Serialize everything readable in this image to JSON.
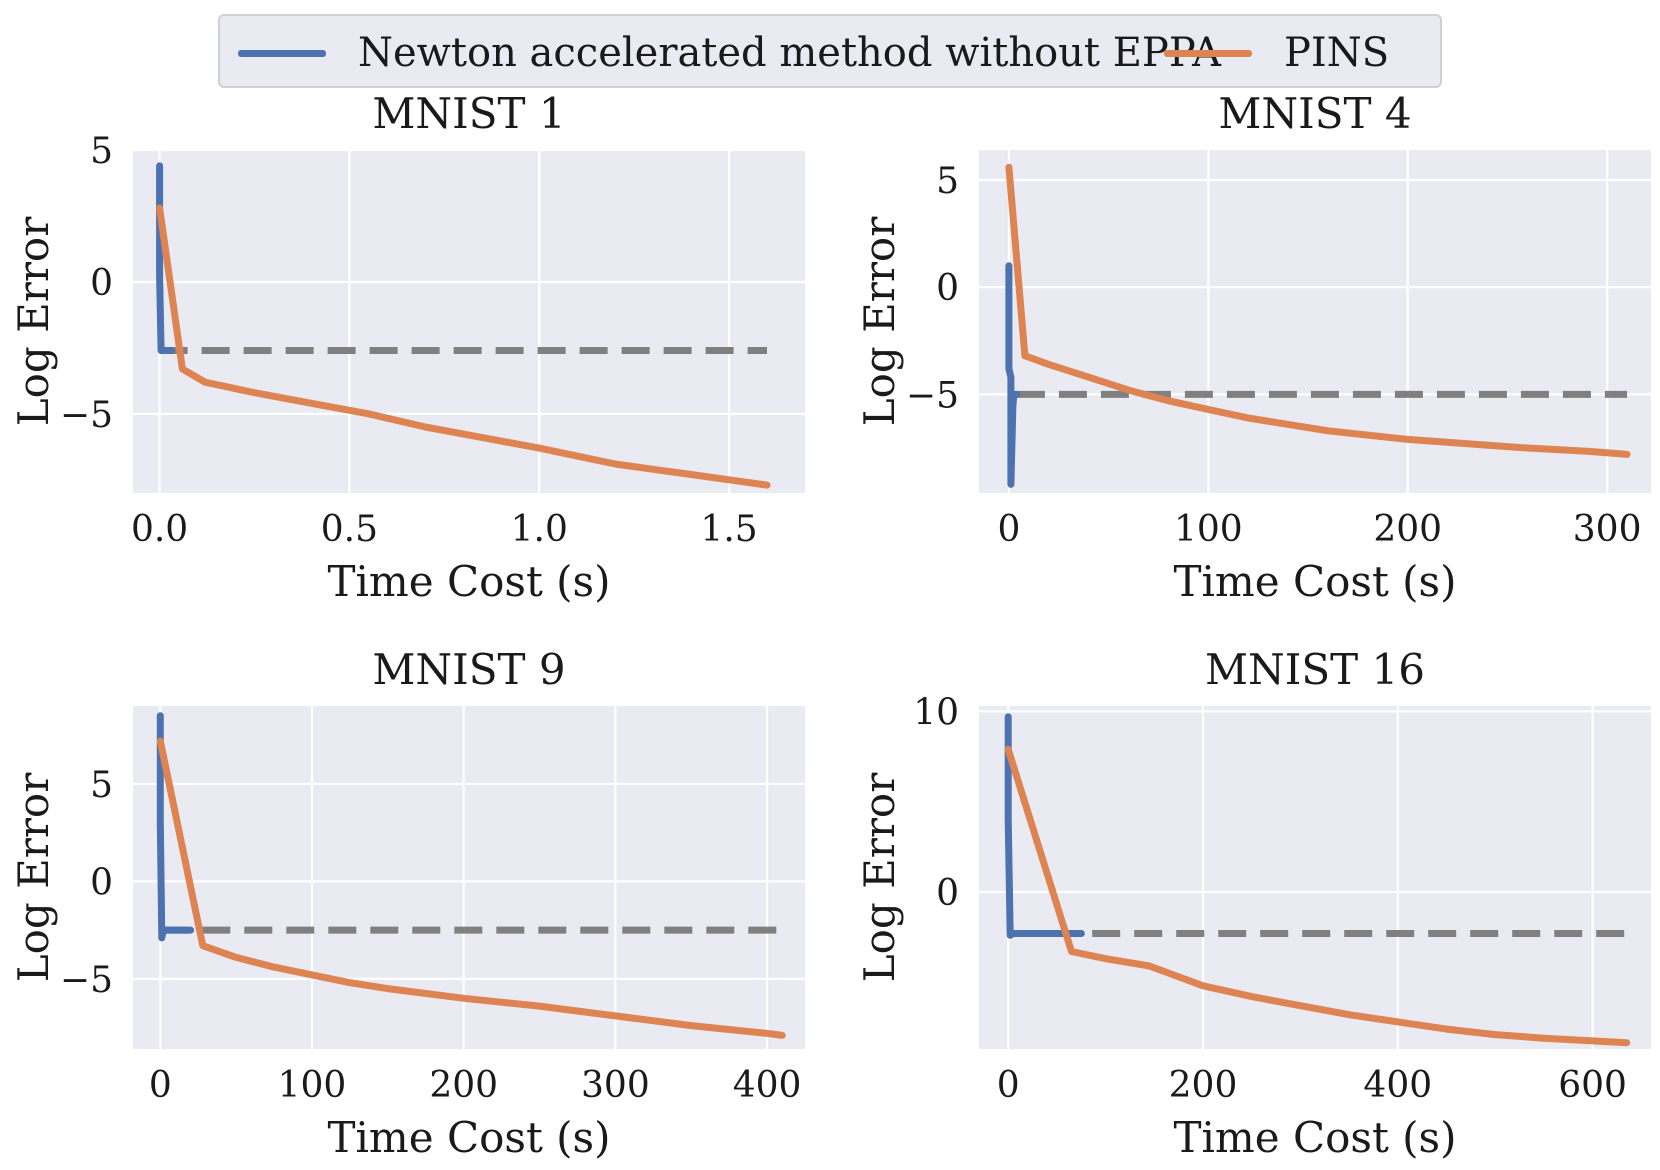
{
  "legend": {
    "series_a": "Newton accelerated method without EPPA",
    "series_b": "PINS"
  },
  "colors": {
    "newton": "#4c72b0",
    "pins": "#dd8452",
    "reference": "#808080",
    "plot_bg": "#eaeaf2",
    "grid": "#ffffff"
  },
  "chart_data": [
    {
      "type": "line",
      "title": "MNIST 1",
      "xlabel": "Time Cost (s)",
      "ylabel": "Log Error",
      "xlim": [
        -0.07,
        1.7
      ],
      "ylim": [
        -8.0,
        5.0
      ],
      "xticks": [
        0.0,
        0.5,
        1.0,
        1.5
      ],
      "xtick_labels": [
        "0.0",
        "0.5",
        "1.0",
        "1.5"
      ],
      "yticks": [
        -5,
        0,
        5
      ],
      "ytick_labels": [
        "−5",
        "0",
        "5"
      ],
      "grid": true,
      "legend": "top-center (shared)",
      "series": [
        {
          "name": "Newton accelerated method without EPPA",
          "x": [
            0.0,
            0.0,
            0.004,
            0.01,
            0.03
          ],
          "y": [
            4.4,
            0.2,
            -2.6,
            -2.6,
            -2.6
          ]
        },
        {
          "name": "PINS",
          "x": [
            0.0,
            0.06,
            0.12,
            0.25,
            0.4,
            0.55,
            0.7,
            0.85,
            1.0,
            1.1,
            1.2,
            1.3,
            1.4,
            1.5,
            1.6
          ],
          "y": [
            2.8,
            -3.3,
            -3.8,
            -4.2,
            -4.6,
            -5.0,
            -5.5,
            -5.9,
            -6.3,
            -6.6,
            -6.9,
            -7.1,
            -7.3,
            -7.5,
            -7.7
          ]
        },
        {
          "name": "",
          "dashed": true,
          "x": [
            0.0,
            1.6
          ],
          "y": [
            -2.6,
            -2.6
          ]
        }
      ]
    },
    {
      "type": "line",
      "title": "MNIST 4",
      "xlabel": "Time Cost (s)",
      "ylabel": "Log Error",
      "xlim": [
        -15,
        322
      ],
      "ylim": [
        -9.6,
        6.4
      ],
      "xticks": [
        0,
        100,
        200,
        300
      ],
      "xtick_labels": [
        "0",
        "100",
        "200",
        "300"
      ],
      "yticks": [
        -5,
        0,
        5
      ],
      "ytick_labels": [
        "−5",
        "0",
        "5"
      ],
      "grid": true,
      "legend": "top-center (shared)",
      "series": [
        {
          "name": "Newton accelerated method without EPPA",
          "x": [
            0.0,
            0.0,
            1.0,
            1.0,
            2.0,
            2.5,
            4.0
          ],
          "y": [
            1.0,
            -3.8,
            -4.2,
            -9.2,
            -5.5,
            -5.0,
            -5.0
          ]
        },
        {
          "name": "PINS",
          "x": [
            0,
            8,
            20,
            40,
            60,
            80,
            100,
            120,
            140,
            160,
            180,
            200,
            230,
            260,
            290,
            310
          ],
          "y": [
            5.6,
            -3.2,
            -3.6,
            -4.2,
            -4.8,
            -5.3,
            -5.7,
            -6.1,
            -6.4,
            -6.7,
            -6.9,
            -7.1,
            -7.3,
            -7.5,
            -7.65,
            -7.8
          ]
        },
        {
          "name": "",
          "dashed": true,
          "x": [
            4,
            310
          ],
          "y": [
            -5.0,
            -5.0
          ]
        }
      ]
    },
    {
      "type": "line",
      "title": "MNIST 9",
      "xlabel": "Time Cost (s)",
      "ylabel": "Log Error",
      "xlim": [
        -18,
        425
      ],
      "ylim": [
        -8.6,
        9.0
      ],
      "xticks": [
        0,
        100,
        200,
        300,
        400
      ],
      "xtick_labels": [
        "0",
        "100",
        "200",
        "300",
        "400"
      ],
      "yticks": [
        -5,
        0,
        5
      ],
      "ytick_labels": [
        "−5",
        "0",
        "5"
      ],
      "grid": true,
      "legend": "top-center (shared)",
      "series": [
        {
          "name": "Newton accelerated method without EPPA",
          "x": [
            0,
            0,
            1,
            2,
            20
          ],
          "y": [
            8.5,
            3.0,
            -2.9,
            -2.5,
            -2.5
          ]
        },
        {
          "name": "PINS",
          "x": [
            0,
            28,
            50,
            75,
            100,
            125,
            150,
            200,
            250,
            280,
            300,
            350,
            400,
            410
          ],
          "y": [
            7.2,
            -3.3,
            -3.9,
            -4.4,
            -4.8,
            -5.2,
            -5.5,
            -6.0,
            -6.4,
            -6.7,
            -6.9,
            -7.4,
            -7.8,
            -7.9
          ]
        },
        {
          "name": "",
          "dashed": true,
          "x": [
            0,
            410
          ],
          "y": [
            -2.5,
            -2.5
          ]
        }
      ]
    },
    {
      "type": "line",
      "title": "MNIST 16",
      "xlabel": "Time Cost (s)",
      "ylabel": "Log Error",
      "xlim": [
        -30,
        660
      ],
      "ylim": [
        -8.7,
        10.3
      ],
      "xticks": [
        0,
        200,
        400,
        600
      ],
      "xtick_labels": [
        "0",
        "200",
        "400",
        "600"
      ],
      "yticks": [
        0,
        10
      ],
      "ytick_labels": [
        "0",
        "10"
      ],
      "grid": true,
      "legend": "top-center (shared)",
      "series": [
        {
          "name": "Newton accelerated method without EPPA",
          "x": [
            0,
            0,
            2,
            5,
            75
          ],
          "y": [
            9.7,
            4.0,
            -2.4,
            -2.3,
            -2.3
          ]
        },
        {
          "name": "PINS",
          "x": [
            0,
            65,
            100,
            145,
            170,
            200,
            250,
            300,
            350,
            400,
            450,
            500,
            550,
            600,
            635
          ],
          "y": [
            7.9,
            -3.3,
            -3.7,
            -4.1,
            -4.6,
            -5.2,
            -5.8,
            -6.3,
            -6.8,
            -7.2,
            -7.6,
            -7.9,
            -8.1,
            -8.25,
            -8.35
          ]
        },
        {
          "name": "",
          "dashed": true,
          "x": [
            0,
            635
          ],
          "y": [
            -2.3,
            -2.3
          ]
        }
      ]
    }
  ]
}
